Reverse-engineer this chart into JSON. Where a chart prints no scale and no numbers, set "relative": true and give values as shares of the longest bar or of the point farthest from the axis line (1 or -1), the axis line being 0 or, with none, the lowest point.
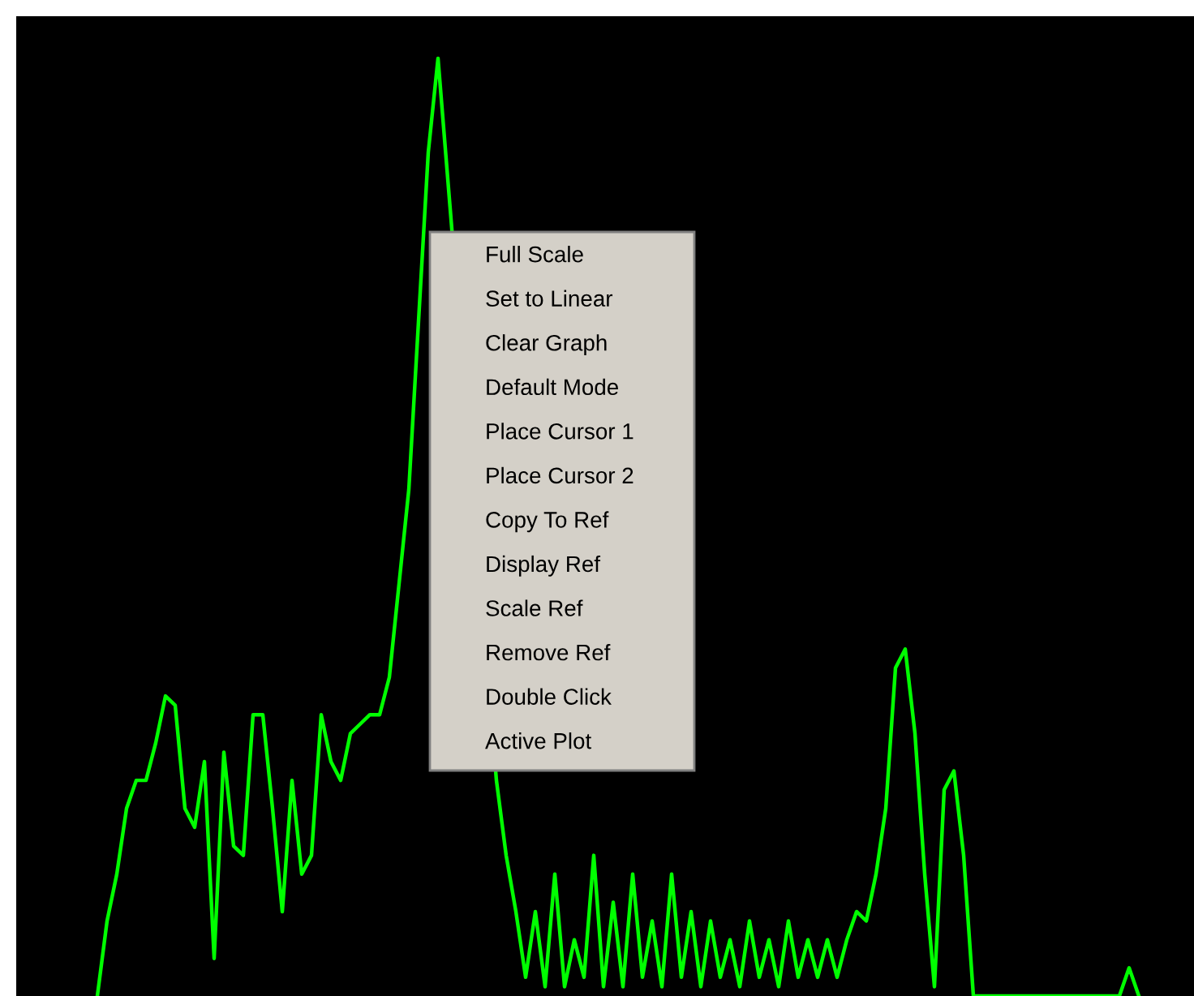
{
  "chart_data": {
    "type": "line",
    "relative": true,
    "legend": false,
    "marker": "none",
    "line_style": "solid",
    "categories": [
      null,
      null,
      null,
      null,
      null,
      null,
      null,
      null,
      null,
      null,
      null,
      null,
      null,
      null,
      null,
      null,
      null,
      null,
      null,
      null,
      null,
      null,
      null,
      null,
      null,
      null,
      null,
      null,
      null,
      null,
      null,
      null,
      null,
      null,
      null,
      null,
      null,
      null,
      null,
      null,
      null,
      null,
      null,
      null,
      null,
      null,
      null,
      null,
      null,
      null,
      null,
      null,
      null,
      null,
      null,
      null,
      null,
      null,
      null,
      null,
      null,
      null,
      null,
      null,
      null,
      null,
      null,
      null,
      null,
      null,
      null,
      null,
      null,
      null,
      null,
      null,
      null,
      null,
      null,
      null,
      null,
      null,
      null,
      null,
      null,
      null,
      null,
      null,
      null,
      null,
      null,
      null,
      null,
      null,
      null,
      null,
      null,
      null,
      null,
      null,
      null,
      null,
      null,
      null,
      null,
      null,
      null,
      null
    ],
    "series": [
      {
        "color": "#00ff00",
        "values": [
          0,
          0.08,
          0.13,
          0.2,
          0.23,
          0.23,
          0.27,
          0.32,
          0.31,
          0.2,
          0.18,
          0.25,
          0.04,
          0.26,
          0.16,
          0.15,
          0.3,
          0.3,
          0.2,
          0.09,
          0.23,
          0.13,
          0.15,
          0.3,
          0.25,
          0.23,
          0.28,
          0.29,
          0.3,
          0.3,
          0.34,
          0.44,
          0.54,
          0.72,
          0.9,
          1,
          null,
          null,
          null,
          null,
          null,
          0.23,
          0.15,
          0.09,
          0.02,
          0.09,
          0.01,
          0.13,
          0.01,
          0.06,
          0.02,
          0.15,
          0.01,
          0.1,
          0.01,
          0.13,
          0.02,
          0.08,
          0.01,
          0.13,
          0.02,
          0.09,
          0.01,
          0.08,
          0.02,
          0.06,
          0.01,
          0.08,
          0.02,
          0.06,
          0.01,
          0.08,
          0.02,
          0.06,
          0.02,
          0.06,
          0.02,
          0.06,
          0.09,
          0.08,
          0.13,
          0.2,
          0.35,
          0.37,
          0.28,
          0.13,
          0.01,
          0.22,
          0.24,
          0.15,
          0,
          0,
          0,
          0,
          0,
          0,
          0,
          0,
          0,
          0,
          0,
          0,
          0,
          0,
          0,
          0,
          0.03,
          0
        ]
      }
    ],
    "annotations": [
      "Full Scale",
      "Set to Linear",
      "Clear Graph",
      "Default Mode",
      "Place Cursor 1",
      "Place Cursor 2",
      "Copy To Ref",
      "Display Ref",
      "Scale Ref",
      "Remove Ref",
      "Double Click",
      "Active Plot"
    ]
  }
}
